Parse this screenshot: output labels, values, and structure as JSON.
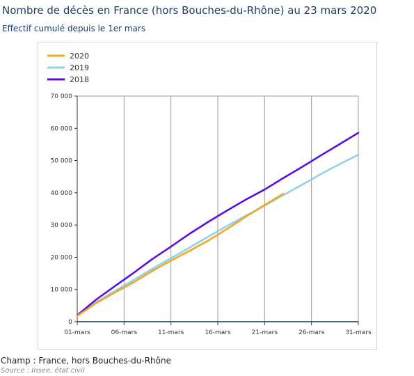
{
  "header": {
    "title": "Nombre de décès en France (hors Bouches-du-Rhône) au 23 mars 2020",
    "subtitle": "Effectif cumulé depuis le 1er mars"
  },
  "footer": {
    "champ": "Champ : France, hors Bouches-du-Rhône",
    "source": "Source : Insee, état civil"
  },
  "chart_data": {
    "type": "line",
    "x_ticks": [
      "01-mars",
      "06-mars",
      "11-mars",
      "16-mars",
      "21-mars",
      "26-mars",
      "31-mars"
    ],
    "x_days": [
      1,
      6,
      11,
      16,
      21,
      26,
      31
    ],
    "xlim": [
      1,
      31
    ],
    "y_ticks": [
      "0",
      "10 000",
      "20 000",
      "30 000",
      "40 000",
      "50 000",
      "60 000",
      "70 000"
    ],
    "ylim": [
      0,
      70000
    ],
    "grid": "vertical",
    "legend_position": "top-left",
    "series": [
      {
        "name": "2020",
        "color": "#f5a623",
        "x": [
          1,
          3,
          5,
          7,
          9,
          11,
          13,
          15,
          17,
          19,
          21,
          23
        ],
        "y": [
          1800,
          5700,
          9000,
          12200,
          15700,
          19000,
          22000,
          25200,
          28800,
          32600,
          36200,
          39700
        ]
      },
      {
        "name": "2019",
        "color": "#8fd3ea",
        "x": [
          1,
          3,
          5,
          7,
          9,
          11,
          13,
          15,
          17,
          19,
          21,
          23,
          25,
          27,
          29,
          31
        ],
        "y": [
          1800,
          6000,
          9500,
          12900,
          16400,
          19700,
          23000,
          26400,
          29700,
          32900,
          36000,
          39300,
          42500,
          45800,
          48900,
          51800
        ]
      },
      {
        "name": "2018",
        "color": "#5a0fe0",
        "x": [
          1,
          3,
          5,
          7,
          9,
          11,
          13,
          15,
          17,
          19,
          21,
          23,
          25,
          27,
          29,
          31
        ],
        "y": [
          2000,
          6800,
          11000,
          15100,
          19400,
          23300,
          27300,
          31000,
          34500,
          37900,
          41000,
          44600,
          48000,
          51600,
          55100,
          58600
        ]
      }
    ]
  }
}
